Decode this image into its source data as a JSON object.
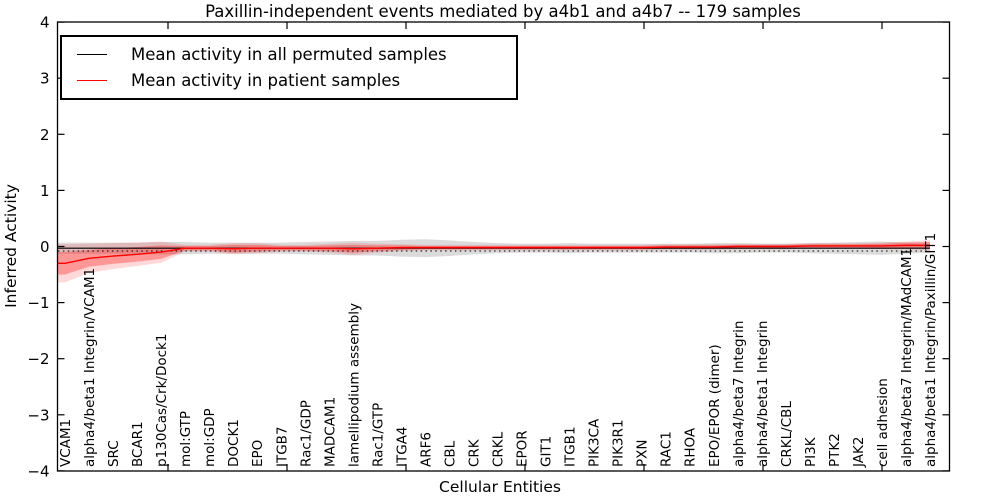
{
  "chart_data": {
    "type": "line",
    "title": "Paxillin-independent events mediated by a4b1 and a4b7 -- 179 samples",
    "xlabel": "Cellular Entities",
    "ylabel": "Inferred Activity",
    "ylim": [
      -4,
      4
    ],
    "yticks": [
      -4,
      -3,
      -2,
      -1,
      0,
      1,
      2,
      3,
      4
    ],
    "grid": false,
    "legend_position": "upper-left",
    "sample_count_in_title": "179 samples",
    "categories": [
      "VCAM1",
      "alpha4/beta1 Integrin/VCAM1",
      "SRC",
      "BCAR1",
      "p130Cas/Crk/Dock1",
      "mol:GTP",
      "mol:GDP",
      "DOCK1",
      "EPO",
      "ITGB7",
      "Rac1/GDP",
      "MADCAM1",
      "lamellipodium assembly",
      "Rac1/GTP",
      "ITGA4",
      "ARF6",
      "CBL",
      "CRK",
      "CRKL",
      "EPOR",
      "GIT1",
      "ITGB1",
      "PIK3CA",
      "PIK3R1",
      "PXN",
      "RAC1",
      "RHOA",
      "EPO/EPOR (dimer)",
      "alpha4/beta7 Integrin",
      "alpha4/beta1 Integrin",
      "CRKL/CBL",
      "PI3K",
      "PTK2",
      "JAK2",
      "cell adhesion",
      "alpha4/beta7 Integrin/MAdCAM1",
      "alpha4/beta1 Integrin/Paxillin/GIT1"
    ],
    "series": [
      {
        "name": "Mean activity in all permuted samples",
        "color": "#000000",
        "band_color": "#b0b0b0",
        "values": [
          -0.03,
          -0.03,
          -0.03,
          -0.03,
          -0.03,
          -0.03,
          -0.03,
          -0.03,
          -0.03,
          -0.03,
          -0.03,
          -0.03,
          -0.03,
          -0.03,
          -0.03,
          -0.03,
          -0.03,
          -0.03,
          -0.03,
          -0.03,
          -0.03,
          -0.03,
          -0.03,
          -0.03,
          -0.03,
          -0.03,
          -0.03,
          -0.03,
          -0.03,
          -0.03,
          -0.03,
          -0.03,
          -0.03,
          -0.03,
          -0.03,
          -0.03,
          -0.03
        ],
        "band_half_width": [
          0.1,
          0.1,
          0.1,
          0.1,
          0.11,
          0.11,
          0.1,
          0.1,
          0.1,
          0.1,
          0.11,
          0.12,
          0.13,
          0.13,
          0.15,
          0.16,
          0.14,
          0.11,
          0.09,
          0.08,
          0.08,
          0.09,
          0.08,
          0.08,
          0.08,
          0.08,
          0.08,
          0.09,
          0.09,
          0.08,
          0.08,
          0.09,
          0.1,
          0.11,
          0.12,
          0.1,
          0.08
        ]
      },
      {
        "name": "Mean activity in patient samples",
        "color": "#ff0000",
        "band_color": "#ff0000",
        "values": [
          -0.3,
          -0.21,
          -0.17,
          -0.14,
          -0.1,
          -0.03,
          -0.03,
          -0.04,
          -0.03,
          -0.03,
          -0.03,
          -0.03,
          -0.04,
          -0.03,
          -0.02,
          -0.02,
          -0.02,
          -0.02,
          -0.02,
          -0.02,
          -0.02,
          -0.02,
          -0.02,
          -0.02,
          -0.02,
          -0.01,
          -0.01,
          -0.01,
          0.0,
          0.0,
          0.0,
          0.01,
          0.01,
          0.01,
          0.01,
          0.02,
          0.02
        ],
        "band_half_width": [
          0.2,
          0.15,
          0.14,
          0.13,
          0.12,
          0.04,
          0.04,
          0.07,
          0.06,
          0.04,
          0.04,
          0.05,
          0.07,
          0.05,
          0.04,
          0.03,
          0.03,
          0.03,
          0.03,
          0.03,
          0.03,
          0.03,
          0.03,
          0.03,
          0.03,
          0.03,
          0.03,
          0.03,
          0.03,
          0.03,
          0.03,
          0.03,
          0.03,
          0.03,
          0.04,
          0.05,
          0.06
        ],
        "outer_band_half_width": [
          0.34,
          0.26,
          0.23,
          0.21,
          0.19,
          0.06,
          0.06,
          0.1,
          0.09,
          0.06,
          0.06,
          0.08,
          0.11,
          0.08,
          0.06,
          0.05,
          0.05,
          0.05,
          0.05,
          0.05,
          0.05,
          0.05,
          0.05,
          0.05,
          0.05,
          0.05,
          0.05,
          0.05,
          0.05,
          0.05,
          0.05,
          0.05,
          0.05,
          0.05,
          0.06,
          0.07,
          0.09
        ]
      }
    ],
    "dotted_reference_line": {
      "color": "#000000",
      "style": "dotted",
      "y": -0.08
    }
  }
}
